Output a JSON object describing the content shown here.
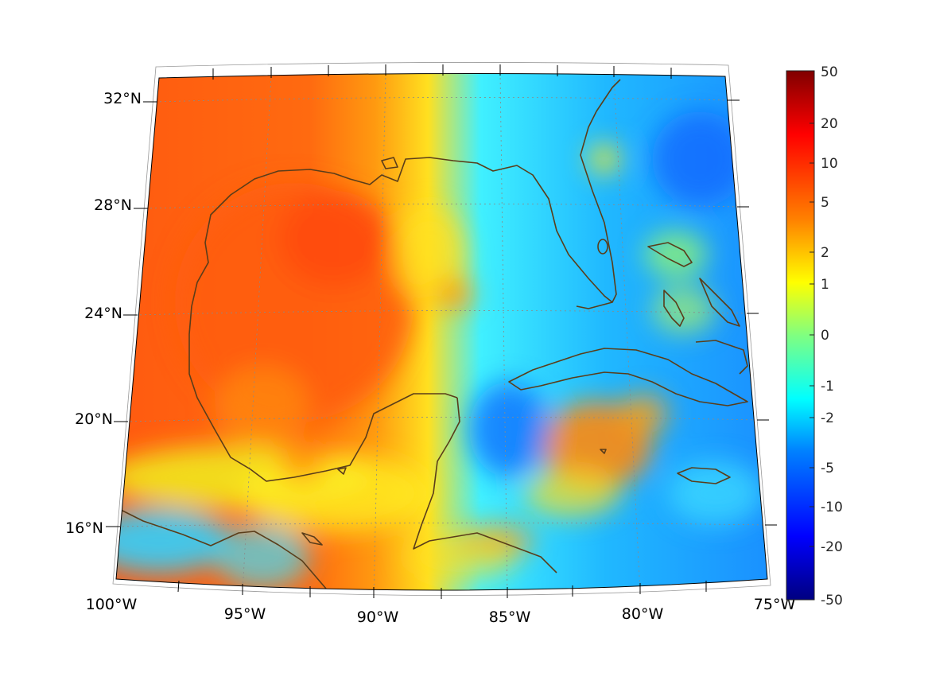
{
  "map": {
    "lat_labels": [
      "32°N",
      "28°N",
      "24°N",
      "20°N",
      "16°N"
    ],
    "lon_labels": [
      "100°W",
      "95°W",
      "90°W",
      "85°W",
      "80°W",
      "75°W"
    ],
    "coastline_color": "#5a3d1a",
    "gridline_color": "#8a8a8a"
  },
  "colorbar": {
    "tick_labels": [
      "50",
      "20",
      "10",
      "5",
      "2",
      "1",
      "0",
      "-1",
      "-2",
      "-5",
      "-10",
      "-20",
      "-50"
    ],
    "colors": [
      "#800000",
      "#ff0000",
      "#ff8000",
      "#ffff00",
      "#00ffff",
      "#0080ff",
      "#0000ff",
      "#000080"
    ]
  }
}
